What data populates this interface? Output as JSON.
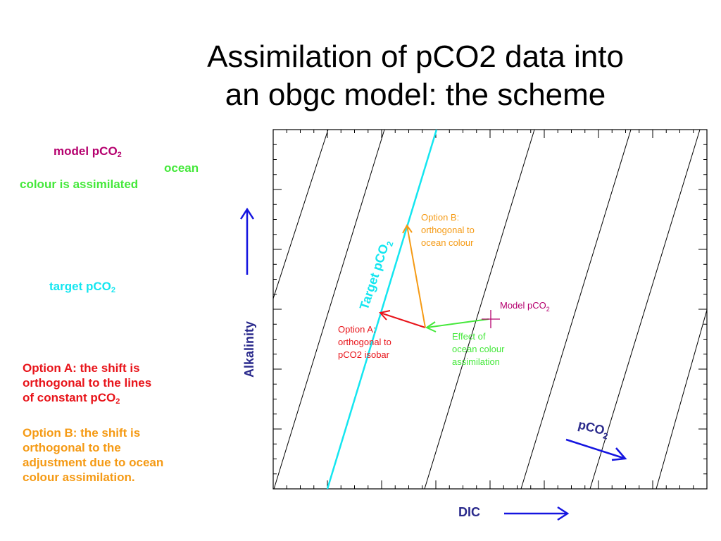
{
  "slide": {
    "title_line1": "Assimilation of pCO2 data into",
    "title_line2": "an obgc model: the scheme"
  },
  "legend": {
    "model_pco2": "model pCO",
    "model_pco2_sub": "2",
    "ocean_colour_1": "ocean",
    "ocean_colour_2": "colour is assimilated",
    "target_pco2": "target pCO",
    "target_pco2_sub": "2"
  },
  "notes": {
    "option_a_line1": "Option A: the shift is",
    "option_a_line2": "orthogonal to the lines",
    "option_a_line3": "of constant pCO",
    "option_a_sub": "2",
    "option_b_line1": "Option B: the shift is",
    "option_b_line2": "orthogonal to the",
    "option_b_line3": "adjustment due to ocean",
    "option_b_line4": "colour assimilation."
  },
  "diagram": {
    "ylabel": "Alkalinity",
    "xlabel": "DIC",
    "target_label": "Target pCO",
    "target_label_sub": "2",
    "pco2_arrow_label": "pCO",
    "pco2_arrow_sub": "2",
    "option_b_label": [
      "Option B:",
      "orthogonal to",
      "ocean colour"
    ],
    "option_a_label": [
      "Option A:",
      "orthogonal to",
      "pCO2 isobar"
    ],
    "effect_label": [
      "Effect of",
      "ocean colour",
      "assimilation"
    ],
    "model_pco2_label": "Model pCO",
    "model_pco2_sub": "2"
  },
  "colors": {
    "magenta": "#b5006e",
    "green": "#44e83a",
    "cyan": "#14e6f0",
    "red": "#e8141a",
    "orange": "#f59a14",
    "navy": "#2a2a8c",
    "blue": "#1414e0"
  }
}
